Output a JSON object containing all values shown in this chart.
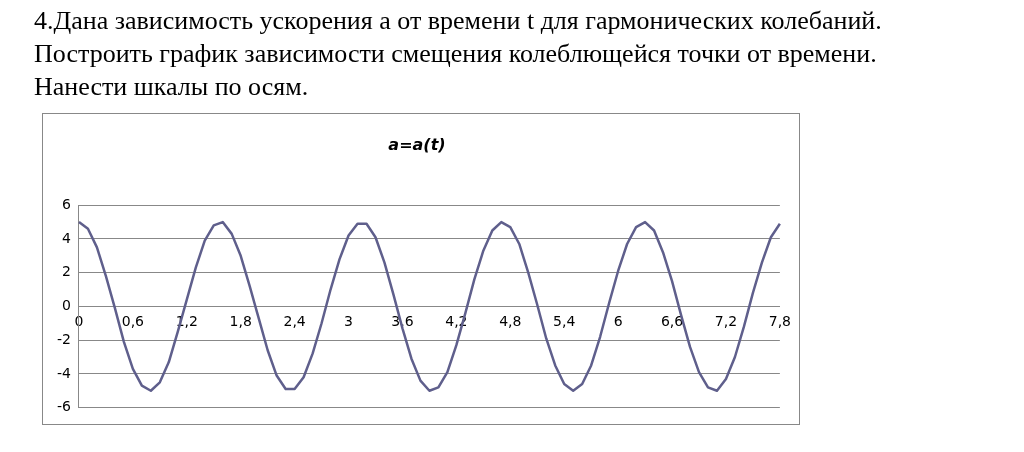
{
  "chart_data": {
    "type": "line",
    "title": "a=a(t)",
    "annotations": [
      "4.Дана зависимость ускорения a от времени t для гармонических колебаний.",
      "Построить график зависимости смещения колеблющейся точки от времени.",
      "Нанести шкалы по осям."
    ],
    "categories": [
      "0",
      null,
      null,
      null,
      null,
      null,
      "0,6",
      null,
      null,
      null,
      null,
      null,
      "1,2",
      null,
      null,
      null,
      null,
      null,
      "1,8",
      null,
      null,
      null,
      null,
      null,
      "2,4",
      null,
      null,
      null,
      null,
      null,
      "3",
      null,
      null,
      null,
      null,
      null,
      "3,6",
      null,
      null,
      null,
      null,
      null,
      "4,2",
      null,
      null,
      null,
      null,
      null,
      "4,8",
      null,
      null,
      null,
      null,
      null,
      "5,4",
      null,
      null,
      null,
      null,
      null,
      "6",
      null,
      null,
      null,
      null,
      null,
      "6,6",
      null,
      null,
      null,
      null,
      null,
      "7,2",
      null,
      null,
      null,
      null,
      null,
      "7,8"
    ],
    "series": [
      {
        "color": "#5f5f8c",
        "values": [
          5,
          4.6,
          3.5,
          1.8,
          -0.1,
          -2.1,
          -3.7,
          -4.7,
          -5,
          -4.5,
          -3.3,
          -1.5,
          0.4,
          2.3,
          3.9,
          4.8,
          5,
          4.3,
          3,
          1.2,
          -0.7,
          -2.6,
          -4.1,
          -4.9,
          -4.9,
          -4.2,
          -2.8,
          -1,
          1,
          2.8,
          4.2,
          4.9,
          4.9,
          4.1,
          2.6,
          0.7,
          -1.3,
          -3.1,
          -4.4,
          -5,
          -4.8,
          -3.9,
          -2.3,
          -0.4,
          1.6,
          3.3,
          4.5,
          5,
          4.7,
          3.7,
          2,
          0.1,
          -1.9,
          -3.5,
          -4.6,
          -5,
          -4.6,
          -3.5,
          -1.8,
          0.2,
          2.1,
          3.7,
          4.7,
          5,
          4.5,
          3.2,
          1.5,
          -0.5,
          -2.4,
          -3.9,
          -4.8,
          -5,
          -4.3,
          -3,
          -1.2,
          0.8,
          2.6,
          4.1,
          4.9
        ]
      }
    ],
    "ylim": [
      -6,
      6
    ],
    "yticks": [
      -6,
      -4,
      -2,
      0,
      2,
      4,
      6
    ],
    "grid": "y",
    "legend": false,
    "marker": "none",
    "line_style": "solid"
  }
}
